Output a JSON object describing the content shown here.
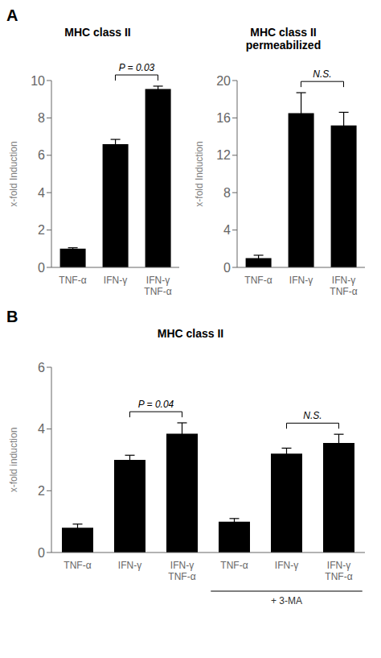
{
  "chart_data": [
    {
      "type": "bar",
      "panel_label": "A",
      "title": "MHC class II",
      "categories": [
        "TNF-α",
        "IFN-γ",
        "IFN-γ\nTNF-α"
      ],
      "values": [
        1.0,
        6.6,
        9.55
      ],
      "errors": [
        0.05,
        0.25,
        0.15
      ],
      "ylabel": "x-fold Induction",
      "ylim": [
        0,
        10
      ],
      "yticks": [
        0,
        2,
        4,
        6,
        8,
        10
      ],
      "color": "#000000",
      "annotations": [
        {
          "text": "P = 0.03",
          "bracket": [
            1,
            2
          ]
        }
      ]
    },
    {
      "type": "bar",
      "title": "MHC class II\npermeabilized",
      "categories": [
        "TNF-α",
        "IFN-γ",
        "IFN-γ\nTNF-α"
      ],
      "values": [
        1.0,
        16.5,
        15.2
      ],
      "errors": [
        0.3,
        2.2,
        1.4
      ],
      "ylabel": "x-fold Induction",
      "ylim": [
        0,
        20
      ],
      "yticks": [
        0,
        4,
        8,
        12,
        16,
        20
      ],
      "color": "#000000",
      "annotations": [
        {
          "text": "N.S.",
          "bracket": [
            1,
            2
          ]
        }
      ]
    },
    {
      "type": "bar",
      "panel_label": "B",
      "title": "MHC class II",
      "categories": [
        "TNF-α",
        "IFN-γ",
        "IFN-γ\nTNF-α",
        "TNF-α",
        "IFN-γ",
        "IFN-γ\nTNF-α"
      ],
      "values": [
        0.8,
        3.0,
        3.85,
        1.0,
        3.2,
        3.55
      ],
      "errors": [
        0.12,
        0.15,
        0.35,
        0.1,
        0.18,
        0.28
      ],
      "ylabel": "x-fold induction",
      "ylim": [
        0,
        6
      ],
      "yticks": [
        0,
        2,
        4,
        6
      ],
      "color": "#000000",
      "annotations": [
        {
          "text": "P = 0.04",
          "bracket": [
            1,
            2
          ]
        },
        {
          "text": "N.S.",
          "bracket": [
            4,
            5
          ]
        },
        {
          "text": "+ 3-MA",
          "group": [
            3,
            5
          ]
        }
      ]
    }
  ]
}
